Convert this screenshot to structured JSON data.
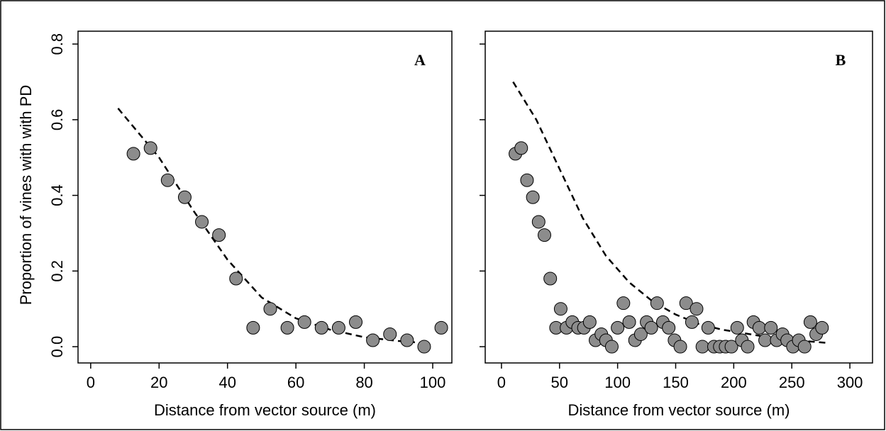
{
  "chart_data": [
    {
      "type": "scatter",
      "label": "A",
      "ylabel": "Proportion of vines with with PD",
      "xlabel": "Distance from vector source (m)",
      "xlim": [
        -3.7,
        105.6
      ],
      "ylim": [
        -0.043,
        0.834
      ],
      "xticks": [
        0,
        20,
        40,
        60,
        80,
        100
      ],
      "yticks": [
        {
          "value": 0,
          "label": "0.0"
        },
        0.2,
        0.4,
        0.6,
        0.8
      ],
      "point_color": "#8c8c8c",
      "curve_color": "#000000",
      "x": [
        12.5,
        17.5,
        22.5,
        27.5,
        32.5,
        37.5,
        42.5,
        47.5,
        52.5,
        57.5,
        62.5,
        67.5,
        72.5,
        77.5,
        82.5,
        87.5,
        92.5,
        97.5,
        102.5
      ],
      "values": [
        0.51,
        0.525,
        0.44,
        0.395,
        0.33,
        0.295,
        0.18,
        0.05,
        0.1,
        0.05,
        0.065,
        0.05,
        0.05,
        0.065,
        0.017,
        0.033,
        0.017,
        0,
        0.05
      ],
      "curve_x": [
        8,
        20,
        30,
        40,
        50,
        60,
        70,
        80,
        90,
        97
      ],
      "curve_values": [
        0.63,
        0.5,
        0.36,
        0.23,
        0.13,
        0.075,
        0.045,
        0.025,
        0.015,
        0.01
      ]
    },
    {
      "type": "scatter",
      "label": "B",
      "xlabel": "Distance from vector source (m)",
      "xlim": [
        -14,
        319.5
      ],
      "ylim": [
        -0.043,
        0.834
      ],
      "xticks": [
        0,
        50,
        100,
        150,
        200,
        250,
        300
      ],
      "yticks": [
        0,
        0.2,
        0.4,
        0.6,
        0.8
      ],
      "point_color": "#8c8c8c",
      "curve_color": "#000000",
      "x": [
        12,
        17,
        22,
        27,
        32,
        37,
        42,
        47,
        51,
        56,
        61,
        66,
        71,
        76,
        81,
        86,
        90,
        95,
        100,
        105,
        110,
        115,
        120,
        125,
        129,
        134,
        139,
        144,
        149,
        154,
        159,
        164,
        168,
        173,
        178,
        183,
        188,
        193,
        198,
        203,
        207,
        212,
        217,
        222,
        227,
        232,
        237,
        242,
        246,
        251,
        256,
        261,
        266,
        271,
        276
      ],
      "values": [
        0.51,
        0.525,
        0.44,
        0.395,
        0.33,
        0.295,
        0.18,
        0.05,
        0.1,
        0.05,
        0.065,
        0.05,
        0.05,
        0.065,
        0.017,
        0.033,
        0.017,
        0,
        0.05,
        0.115,
        0.065,
        0.017,
        0.033,
        0.065,
        0.05,
        0.115,
        0.065,
        0.05,
        0.017,
        0,
        0.115,
        0.065,
        0.1,
        0,
        0.05,
        0,
        0,
        0,
        0,
        0.05,
        0.017,
        0,
        0.065,
        0.05,
        0.017,
        0.05,
        0.017,
        0.033,
        0.017,
        0,
        0.017,
        0,
        0.065,
        0.033,
        0.05
      ],
      "curve_x": [
        10,
        30,
        50,
        70,
        90,
        110,
        130,
        150,
        170,
        190,
        210,
        230,
        250,
        280
      ],
      "curve_values": [
        0.7,
        0.6,
        0.47,
        0.34,
        0.24,
        0.17,
        0.12,
        0.085,
        0.06,
        0.045,
        0.035,
        0.025,
        0.018,
        0.01
      ]
    }
  ]
}
